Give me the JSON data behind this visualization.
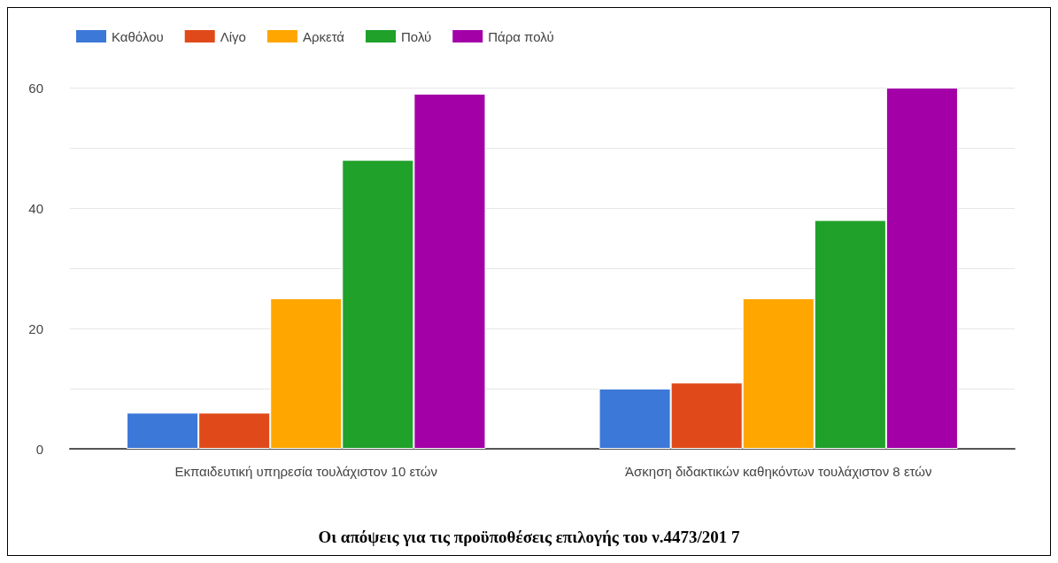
{
  "chart_data": {
    "type": "bar",
    "title": "Οι απόψεις για τις προϋποθέσεις επιλογής του ν.4473/201 7",
    "categories": [
      "Εκπαιδευτική υπηρεσία τουλάχιστον 10 ετών",
      "Άσκηση διδακτικών καθηκόντων τουλάχιστον 8 ετών"
    ],
    "series": [
      {
        "name": "Καθόλου",
        "color": "#3c78d8",
        "values": [
          6,
          10
        ]
      },
      {
        "name": "Λίγο",
        "color": "#e04a1a",
        "values": [
          6,
          11
        ]
      },
      {
        "name": "Αρκετά",
        "color": "#ffa600",
        "values": [
          25,
          25
        ]
      },
      {
        "name": "Πολύ",
        "color": "#1fa12a",
        "values": [
          48,
          38
        ]
      },
      {
        "name": "Πάρα πολύ",
        "color": "#a300a8",
        "values": [
          59,
          60
        ]
      }
    ],
    "ylim": [
      0,
      60
    ],
    "yticks": [
      0,
      {
        "value": 10,
        "label": null
      },
      20,
      {
        "value": 30,
        "label": null
      },
      40,
      {
        "value": 50,
        "label": null
      },
      60
    ],
    "grid": "y",
    "legend": "top left"
  }
}
